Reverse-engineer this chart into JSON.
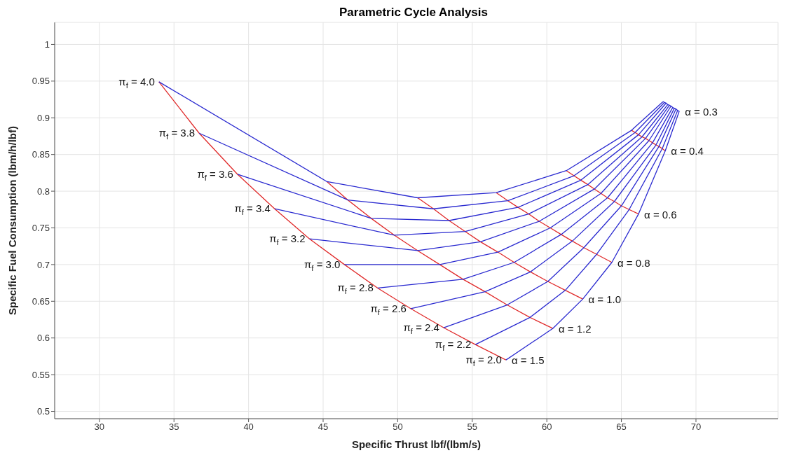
{
  "chart_data": {
    "type": "line",
    "title": "Parametric Cycle Analysis",
    "xlabel": "Specific Thrust lbf/(lbm/s)",
    "ylabel": "Specific Fuel Consumption (lbm/h/lbf)",
    "xlim": [
      27,
      75.5
    ],
    "ylim": [
      0.49,
      1.03
    ],
    "xticks": [
      30,
      35,
      40,
      45,
      50,
      55,
      60,
      65,
      70
    ],
    "yticks": [
      0.5,
      0.55,
      0.6,
      0.65,
      0.7,
      0.75,
      0.8,
      0.85,
      0.9,
      0.95,
      1
    ],
    "grid": true,
    "line_style": "solid",
    "series": [
      {
        "name": "α = 1.5",
        "color": "#e02a2a",
        "x": [
          33.99,
          36.69,
          39.26,
          41.75,
          44.09,
          46.43,
          48.66,
          50.87,
          53.08,
          55.21,
          57.26
        ],
        "values": [
          0.949,
          0.879,
          0.823,
          0.776,
          0.735,
          0.7,
          0.668,
          0.64,
          0.614,
          0.591,
          0.57
        ]
      },
      {
        "name": "α = 1.2",
        "color": "#e02a2a",
        "x": [
          45.26,
          46.66,
          48.22,
          49.78,
          51.34,
          52.82,
          54.38,
          55.86,
          57.34,
          58.87,
          60.41
        ],
        "values": [
          0.813,
          0.788,
          0.763,
          0.74,
          0.719,
          0.7,
          0.68,
          0.663,
          0.645,
          0.628,
          0.613
        ]
      },
      {
        "name": "α = 1.0",
        "color": "#e02a2a",
        "x": [
          51.34,
          52.4,
          53.44,
          54.53,
          55.55,
          56.72,
          57.81,
          58.9,
          60.07,
          61.24,
          62.41
        ],
        "values": [
          0.791,
          0.776,
          0.76,
          0.745,
          0.731,
          0.717,
          0.703,
          0.69,
          0.677,
          0.665,
          0.653
        ]
      },
      {
        "name": "α = 0.8",
        "color": "#e02a2a",
        "x": [
          56.61,
          57.39,
          58.07,
          58.78,
          59.49,
          60.23,
          60.96,
          61.71,
          62.48,
          63.34,
          64.36
        ],
        "values": [
          0.798,
          0.787,
          0.778,
          0.769,
          0.759,
          0.75,
          0.741,
          0.732,
          0.723,
          0.714,
          0.703
        ]
      },
      {
        "name": "α = 0.6",
        "color": "#e02a2a",
        "x": [
          61.31,
          61.82,
          62.28,
          62.75,
          63.19,
          63.63,
          64.07,
          64.53,
          65.0,
          65.52,
          66.15
        ],
        "values": [
          0.828,
          0.821,
          0.815,
          0.809,
          0.803,
          0.797,
          0.791,
          0.786,
          0.78,
          0.775,
          0.769
        ]
      },
      {
        "name": "α = 0.4",
        "color": "#e02a2a",
        "x": [
          65.68,
          65.92,
          66.15,
          66.38,
          66.62,
          66.85,
          67.09,
          67.32,
          67.52,
          67.74,
          67.94
        ],
        "values": [
          0.883,
          0.88,
          0.877,
          0.874,
          0.872,
          0.869,
          0.866,
          0.863,
          0.861,
          0.858,
          0.855
        ]
      },
      {
        "name": "α = 0.3",
        "color": "#2a2ad0",
        "x": [
          67.79,
          67.89,
          68.0,
          68.11,
          68.22,
          68.33,
          68.44,
          68.55,
          68.66,
          68.77,
          68.88
        ],
        "values": [
          0.922,
          0.921,
          0.92,
          0.918,
          0.917,
          0.916,
          0.914,
          0.913,
          0.912,
          0.91,
          0.909
        ]
      },
      {
        "name": "π$_{f}$ = 4.0",
        "color": "#2a2ad0",
        "x": [
          67.79,
          65.68,
          61.31,
          56.61,
          51.34,
          45.26,
          33.99
        ],
        "values": [
          0.922,
          0.883,
          0.828,
          0.798,
          0.791,
          0.813,
          0.949
        ]
      },
      {
        "name": "π$_{f}$ = 3.8",
        "color": "#2a2ad0",
        "x": [
          67.89,
          65.92,
          61.82,
          57.39,
          52.4,
          46.66,
          36.69
        ],
        "values": [
          0.921,
          0.88,
          0.821,
          0.787,
          0.776,
          0.788,
          0.879
        ]
      },
      {
        "name": "π$_{f}$ = 3.6",
        "color": "#2a2ad0",
        "x": [
          68.0,
          66.15,
          62.28,
          58.07,
          53.44,
          48.22,
          39.26
        ],
        "values": [
          0.92,
          0.877,
          0.815,
          0.778,
          0.76,
          0.763,
          0.823
        ]
      },
      {
        "name": "π$_{f}$ = 3.4",
        "color": "#2a2ad0",
        "x": [
          68.11,
          66.38,
          62.75,
          58.78,
          54.53,
          49.78,
          41.75
        ],
        "values": [
          0.918,
          0.874,
          0.809,
          0.769,
          0.745,
          0.74,
          0.776
        ]
      },
      {
        "name": "π$_{f}$ = 3.2",
        "color": "#2a2ad0",
        "x": [
          68.22,
          66.62,
          63.19,
          59.49,
          55.55,
          51.34,
          44.09
        ],
        "values": [
          0.917,
          0.872,
          0.803,
          0.759,
          0.731,
          0.719,
          0.735
        ]
      },
      {
        "name": "π$_{f}$ = 3.0",
        "color": "#2a2ad0",
        "x": [
          68.33,
          66.85,
          63.63,
          60.23,
          56.72,
          52.82,
          46.43
        ],
        "values": [
          0.916,
          0.869,
          0.797,
          0.75,
          0.717,
          0.7,
          0.7
        ]
      },
      {
        "name": "π$_{f}$ = 2.8",
        "color": "#2a2ad0",
        "x": [
          68.44,
          67.09,
          64.07,
          60.96,
          57.81,
          54.38,
          48.66
        ],
        "values": [
          0.914,
          0.866,
          0.791,
          0.741,
          0.703,
          0.68,
          0.668
        ]
      },
      {
        "name": "π$_{f}$ = 2.6",
        "color": "#2a2ad0",
        "x": [
          68.55,
          67.32,
          64.53,
          61.71,
          58.9,
          55.86,
          50.87
        ],
        "values": [
          0.913,
          0.863,
          0.786,
          0.732,
          0.69,
          0.663,
          0.64
        ]
      },
      {
        "name": "π$_{f}$ = 2.4",
        "color": "#2a2ad0",
        "x": [
          68.66,
          67.52,
          65.0,
          62.48,
          60.07,
          57.34,
          53.08
        ],
        "values": [
          0.912,
          0.861,
          0.78,
          0.723,
          0.677,
          0.645,
          0.614
        ]
      },
      {
        "name": "π$_{f}$ = 2.2",
        "color": "#2a2ad0",
        "x": [
          68.77,
          67.74,
          65.52,
          63.34,
          61.24,
          58.87,
          55.21
        ],
        "values": [
          0.91,
          0.858,
          0.775,
          0.714,
          0.665,
          0.628,
          0.591
        ]
      },
      {
        "name": "π$_{f}$ = 2.0",
        "color": "#2a2ad0",
        "x": [
          68.88,
          67.94,
          66.15,
          64.36,
          62.41,
          60.41,
          57.26
        ],
        "values": [
          0.909,
          0.855,
          0.769,
          0.703,
          0.653,
          0.613,
          0.57
        ]
      }
    ]
  }
}
